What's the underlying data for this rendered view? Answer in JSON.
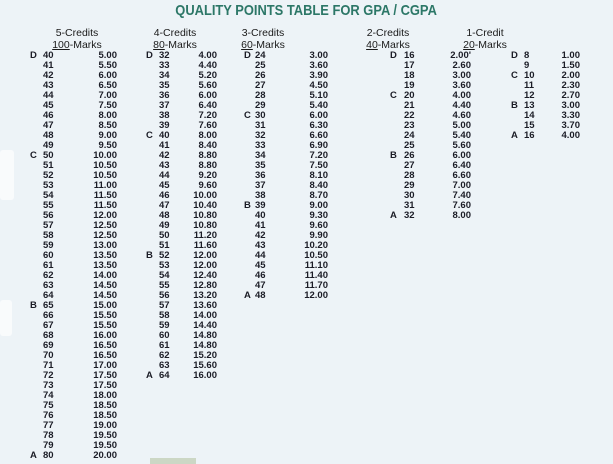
{
  "title": "QUALITY POINTS TABLE FOR GPA / CGPA",
  "colors": {
    "background": "#edf3f7",
    "text": "#1b1c26",
    "title": "#2c7767",
    "header_text": "#1a1a1a",
    "artifact_green": "#ccd7c5"
  },
  "columns": [
    {
      "credits": "5-Credits",
      "marks_value": "100",
      "marks_suffix": "-Marks",
      "rows": [
        [
          "D",
          "40",
          "5.00"
        ],
        [
          "",
          "41",
          "5.50"
        ],
        [
          "",
          "42",
          "6.00"
        ],
        [
          "",
          "43",
          "6.50"
        ],
        [
          "",
          "44",
          "7.00"
        ],
        [
          "",
          "45",
          "7.50"
        ],
        [
          "",
          "46",
          "8.00"
        ],
        [
          "",
          "47",
          "8.50"
        ],
        [
          "",
          "48",
          "9.00"
        ],
        [
          "",
          "49",
          "9.50"
        ],
        [
          "C",
          "50",
          "10.00"
        ],
        [
          "",
          "51",
          "10.50"
        ],
        [
          "",
          "52",
          "10.50"
        ],
        [
          "",
          "53",
          "11.00"
        ],
        [
          "",
          "54",
          "11.50"
        ],
        [
          "",
          "55",
          "11.50"
        ],
        [
          "",
          "56",
          "12.00"
        ],
        [
          "",
          "57",
          "12.50"
        ],
        [
          "",
          "58",
          "12.50"
        ],
        [
          "",
          "59",
          "13.00"
        ],
        [
          "",
          "60",
          "13.50"
        ],
        [
          "",
          "61",
          "13.50"
        ],
        [
          "",
          "62",
          "14.00"
        ],
        [
          "",
          "63",
          "14.50"
        ],
        [
          "",
          "64",
          "14.50"
        ],
        [
          "B",
          "65",
          "15.00"
        ],
        [
          "",
          "66",
          "15.50"
        ],
        [
          "",
          "67",
          "15.50"
        ],
        [
          "",
          "68",
          "16.00"
        ],
        [
          "",
          "69",
          "16.50"
        ],
        [
          "",
          "70",
          "16.50"
        ],
        [
          "",
          "71",
          "17.00"
        ],
        [
          "",
          "72",
          "17.50"
        ],
        [
          "",
          "73",
          "17.50"
        ],
        [
          "",
          "74",
          "18.00"
        ],
        [
          "",
          "75",
          "18.50"
        ],
        [
          "",
          "76",
          "18.50"
        ],
        [
          "",
          "77",
          "19.00"
        ],
        [
          "",
          "78",
          "19.50"
        ],
        [
          "",
          "79",
          "19.50"
        ],
        [
          "A",
          "80",
          "20.00"
        ]
      ]
    },
    {
      "credits": "4-Credits",
      "marks_value": "80",
      "marks_suffix": "-Marks",
      "rows": [
        [
          "D",
          "32",
          "4.00"
        ],
        [
          "",
          "33",
          "4.40"
        ],
        [
          "",
          "34",
          "5.20"
        ],
        [
          "",
          "35",
          "5.60"
        ],
        [
          "",
          "36",
          "6.00"
        ],
        [
          "",
          "37",
          "6.40"
        ],
        [
          "",
          "38",
          "7.20"
        ],
        [
          "",
          "39",
          "7.60"
        ],
        [
          "C",
          "40",
          "8.00"
        ],
        [
          "",
          "41",
          "8.40"
        ],
        [
          "",
          "42",
          "8.80"
        ],
        [
          "",
          "43",
          "8.80"
        ],
        [
          "",
          "44",
          "9.20"
        ],
        [
          "",
          "45",
          "9.60"
        ],
        [
          "",
          "46",
          "10.00"
        ],
        [
          "",
          "47",
          "10.40"
        ],
        [
          "",
          "48",
          "10.80"
        ],
        [
          "",
          "49",
          "10.80"
        ],
        [
          "",
          "50",
          "11.20"
        ],
        [
          "",
          "51",
          "11.60"
        ],
        [
          "B",
          "52",
          "12.00"
        ],
        [
          "",
          "53",
          "12.00"
        ],
        [
          "",
          "54",
          "12.40"
        ],
        [
          "",
          "55",
          "12.80"
        ],
        [
          "",
          "56",
          "13.20"
        ],
        [
          "",
          "57",
          "13.60"
        ],
        [
          "",
          "58",
          "14.00"
        ],
        [
          "",
          "59",
          "14.40"
        ],
        [
          "",
          "60",
          "14.80"
        ],
        [
          "",
          "61",
          "14.80"
        ],
        [
          "",
          "62",
          "15.20"
        ],
        [
          "",
          "63",
          "15.60"
        ],
        [
          "A",
          "64",
          "16.00"
        ]
      ]
    },
    {
      "credits": "3-Credits",
      "marks_value": "60",
      "marks_suffix": "-Marks",
      "rows": [
        [
          "D",
          "24",
          "3.00"
        ],
        [
          "",
          "25",
          "3.60"
        ],
        [
          "",
          "26",
          "3.90"
        ],
        [
          "",
          "27",
          "4.50"
        ],
        [
          "",
          "28",
          "5.10"
        ],
        [
          "",
          "29",
          "5.40"
        ],
        [
          "C",
          "30",
          "6.00"
        ],
        [
          "",
          "31",
          "6.30"
        ],
        [
          "",
          "32",
          "6.60"
        ],
        [
          "",
          "33",
          "6.90"
        ],
        [
          "",
          "34",
          "7.20"
        ],
        [
          "",
          "35",
          "7.50"
        ],
        [
          "",
          "36",
          "8.10"
        ],
        [
          "",
          "37",
          "8.40"
        ],
        [
          "",
          "38",
          "8.70"
        ],
        [
          "B",
          "39",
          "9.00"
        ],
        [
          "",
          "40",
          "9.30"
        ],
        [
          "",
          "41",
          "9.60"
        ],
        [
          "",
          "42",
          "9.90"
        ],
        [
          "",
          "43",
          "10.20"
        ],
        [
          "",
          "44",
          "10.50"
        ],
        [
          "",
          "45",
          "11.10"
        ],
        [
          "",
          "46",
          "11.40"
        ],
        [
          "",
          "47",
          "11.70"
        ],
        [
          "A",
          "48",
          "12.00"
        ]
      ]
    },
    {
      "credits": "2-Credits",
      "marks_value": "40",
      "marks_suffix": "-Marks",
      "rows": [
        [
          "D",
          "16",
          "2.00'"
        ],
        [
          "",
          "17",
          "2.60"
        ],
        [
          "",
          "18",
          "3.00"
        ],
        [
          "",
          "19",
          "3.60"
        ],
        [
          "C",
          "20",
          "4.00"
        ],
        [
          "",
          "21",
          "4.40"
        ],
        [
          "",
          "22",
          "4.60"
        ],
        [
          "",
          "23",
          "5.00"
        ],
        [
          "",
          "24",
          "5.40"
        ],
        [
          "",
          "25",
          "5.60"
        ],
        [
          "B",
          "26",
          "6.00"
        ],
        [
          "",
          "27",
          "6.40"
        ],
        [
          "",
          "28",
          "6.60"
        ],
        [
          "",
          "29",
          "7.00"
        ],
        [
          "",
          "30",
          "7.40"
        ],
        [
          "",
          "31",
          "7.60"
        ],
        [
          "A",
          "32",
          "8.00"
        ]
      ]
    },
    {
      "credits": "1-Credit",
      "marks_value": "20",
      "marks_suffix": "-Marks",
      "rows": [
        [
          "D",
          "8",
          "1.00"
        ],
        [
          "",
          "9",
          "1.50"
        ],
        [
          "C",
          "10",
          "2.00"
        ],
        [
          "",
          "11",
          "2.30"
        ],
        [
          "",
          "12",
          "2.70"
        ],
        [
          "B",
          "13",
          "3.00"
        ],
        [
          "",
          "14",
          "3.30"
        ],
        [
          "",
          "15",
          "3.70"
        ],
        [
          "A",
          "16",
          "4.00"
        ]
      ]
    }
  ]
}
